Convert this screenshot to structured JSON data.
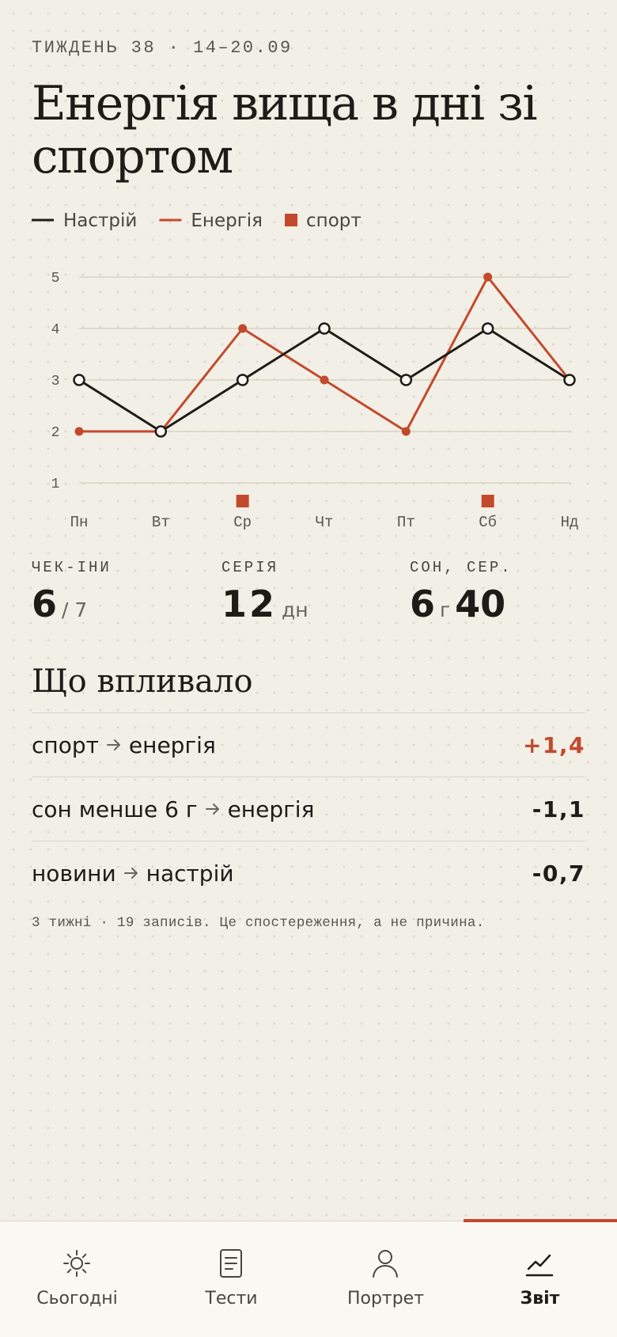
{
  "header": {
    "kicker": "ТИЖДЕНЬ 38 · 14–20.09",
    "title": "Енергія вища в дні зі спортом"
  },
  "chart_data": {
    "type": "line",
    "categories": [
      "Пн",
      "Вт",
      "Ср",
      "Чт",
      "Пт",
      "Сб",
      "Нд"
    ],
    "series": [
      {
        "name": "Настрій",
        "color": "#1f1c18",
        "values": [
          3,
          2,
          3,
          4,
          3,
          4,
          3
        ]
      },
      {
        "name": "Енергія",
        "color": "#c24a2b",
        "values": [
          2,
          2,
          4,
          3,
          2,
          5,
          3
        ]
      }
    ],
    "sport": {
      "name": "спорт",
      "color": "#c24a2b",
      "days": [
        false,
        false,
        true,
        false,
        false,
        true,
        false
      ]
    },
    "ylim": [
      1,
      5
    ],
    "yticks": [
      1,
      2,
      3,
      4,
      5
    ],
    "grid": true
  },
  "stats": {
    "checkins": {
      "label": "ЧЕК-ІНИ",
      "value": 6,
      "total": "/ 7"
    },
    "streak": {
      "label": "СЕРІЯ",
      "value": 12,
      "unit": "дн"
    },
    "sleep": {
      "label": "СОН, СЕР.",
      "hours": 6,
      "unit": "г",
      "minutes": 40
    }
  },
  "influences": {
    "title": "Що впливало",
    "rows": [
      {
        "cause": "спорт",
        "effect": "енергія",
        "value": "+1,4"
      },
      {
        "cause": "сон менше 6 г",
        "effect": "енергія",
        "value": "-1,1"
      },
      {
        "cause": "новини",
        "effect": "настрій",
        "value": "-0,7"
      }
    ],
    "note": "3 тижні · 19 записів. Це спостереження, а не причина."
  },
  "nav": {
    "tabs": [
      "Сьогодні",
      "Тести",
      "Портрет",
      "Звіт"
    ]
  }
}
